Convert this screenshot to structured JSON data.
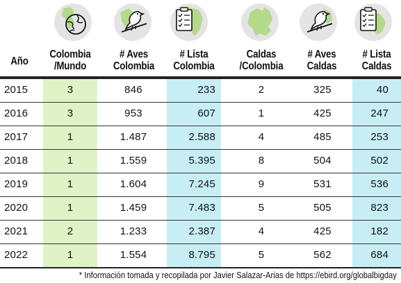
{
  "headers": {
    "year": [
      "Año"
    ],
    "colombia_mundo": [
      "Colombia",
      "/Mundo"
    ],
    "aves_colombia": [
      "# Aves",
      "Colombia"
    ],
    "lista_colombia": [
      "# Lista",
      "Colombia"
    ],
    "caldas_colombia": [
      "Caldas",
      "/Colombia"
    ],
    "aves_caldas": [
      "# Aves",
      "Caldas"
    ],
    "lista_caldas": [
      "# Lista",
      "Caldas"
    ]
  },
  "icons": [
    "globe-icon",
    "bird-icon",
    "checklist-icon",
    "caldas-map-icon",
    "bird-icon",
    "checklist-icon"
  ],
  "colors": {
    "green_column": "#dff3c6",
    "cyan_column": "#c8eef5",
    "icon_circle": "#e4e4e4",
    "icon_green": "#b3d98b"
  },
  "rows": [
    {
      "year": "2015",
      "col_mundo": "3",
      "aves_col": "846",
      "lista_col": "233",
      "caldas_col": "2",
      "aves_caldas": "325",
      "lista_caldas": "40"
    },
    {
      "year": "2016",
      "col_mundo": "3",
      "aves_col": "953",
      "lista_col": "607",
      "caldas_col": "1",
      "aves_caldas": "425",
      "lista_caldas": "247"
    },
    {
      "year": "2017",
      "col_mundo": "1",
      "aves_col": "1.487",
      "lista_col": "2.588",
      "caldas_col": "4",
      "aves_caldas": "485",
      "lista_caldas": "253"
    },
    {
      "year": "2018",
      "col_mundo": "1",
      "aves_col": "1.559",
      "lista_col": "5.395",
      "caldas_col": "8",
      "aves_caldas": "504",
      "lista_caldas": "502"
    },
    {
      "year": "2019",
      "col_mundo": "1",
      "aves_col": "1.604",
      "lista_col": "7.245",
      "caldas_col": "9",
      "aves_caldas": "531",
      "lista_caldas": "536"
    },
    {
      "year": "2020",
      "col_mundo": "1",
      "aves_col": "1.459",
      "lista_col": "7.483",
      "caldas_col": "5",
      "aves_caldas": "505",
      "lista_caldas": "823"
    },
    {
      "year": "2021",
      "col_mundo": "2",
      "aves_col": "1.233",
      "lista_col": "2.387",
      "caldas_col": "4",
      "aves_caldas": "425",
      "lista_caldas": "182"
    },
    {
      "year": "2022",
      "col_mundo": "1",
      "aves_col": "1.554",
      "lista_col": "8.795",
      "caldas_col": "5",
      "aves_caldas": "562",
      "lista_caldas": "684"
    }
  ],
  "footnote": "* Información tomada y recopilada por Javier Salazar-Arias de https://ebird.org/globalbigday"
}
